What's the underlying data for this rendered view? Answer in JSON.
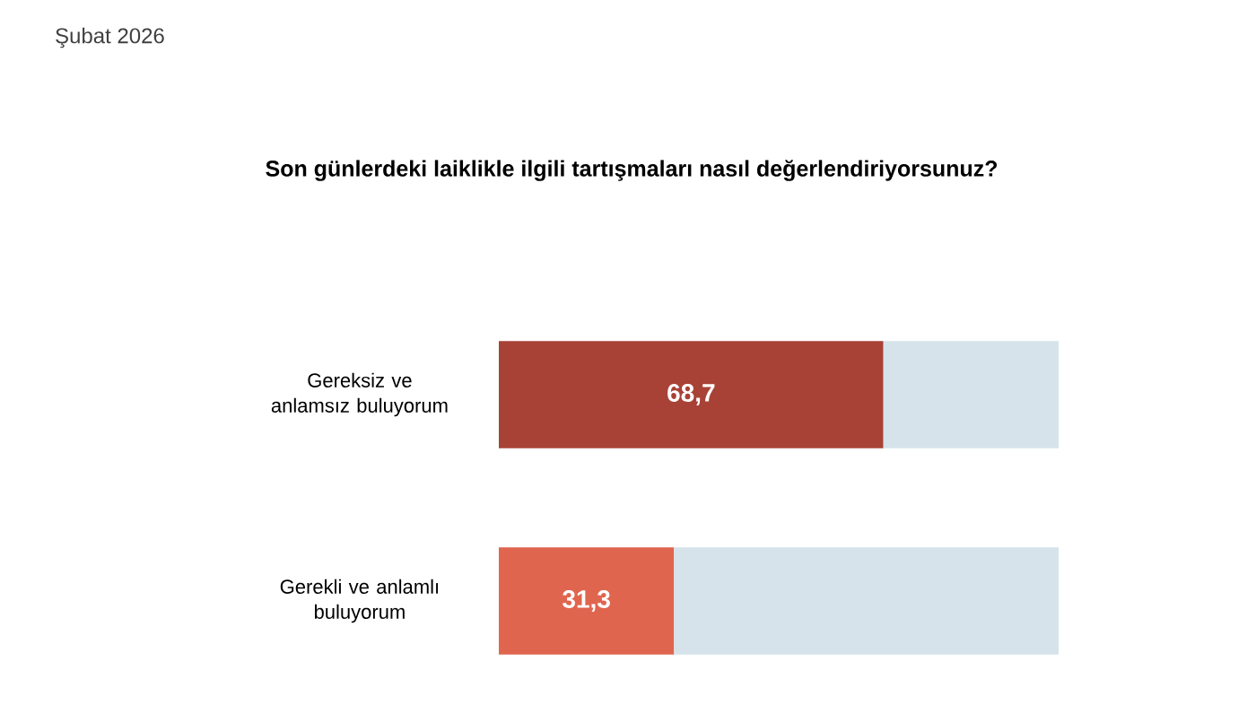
{
  "chart_data": {
    "type": "bar",
    "orientation": "horizontal",
    "stacked": true,
    "title": "Son günlerdeki laiklikle ilgili tartışmaları nasıl değerlendiriyorsunuz?",
    "subtitle": "Şubat 2026",
    "categories": [
      "Gereksiz ve anlamsız buluyorum",
      "Gerekli ve anlamlı buluyorum"
    ],
    "series": [
      {
        "colors": [
          "#a84236",
          "#e0654f"
        ],
        "values": [
          68.7,
          31.3
        ],
        "value_labels": [
          "68,7",
          "31,3"
        ]
      },
      {
        "color": "#d6e3ea",
        "values": [
          31.3,
          68.7
        ]
      }
    ],
    "xlim": [
      0,
      100
    ],
    "tick_labels": "y"
  }
}
